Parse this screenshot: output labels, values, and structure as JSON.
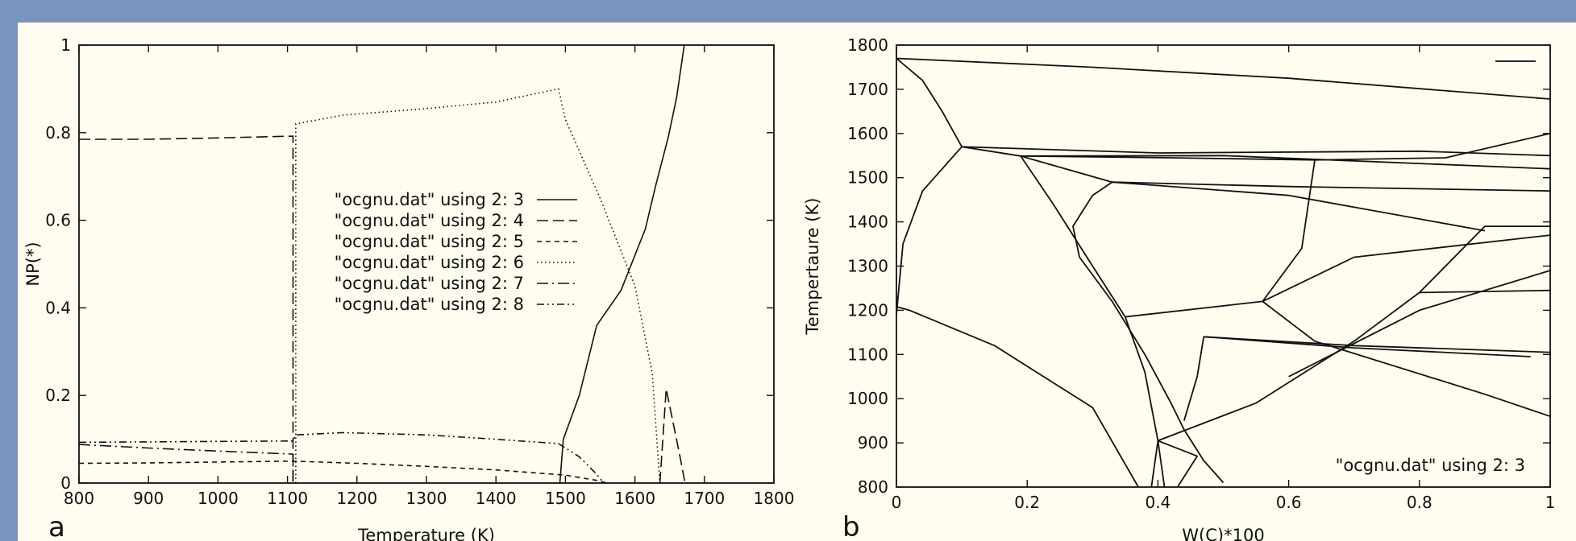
{
  "colors": {
    "frame": "#7a95bd",
    "panel": "#fffdf0",
    "ink": "#111111"
  },
  "chart_data": [
    {
      "panel_label": "a",
      "type": "line",
      "xlabel": "Temperature (K)",
      "ylabel": "NP(*)",
      "xlim": [
        800,
        1800
      ],
      "ylim": [
        0,
        1
      ],
      "xticks": [
        "800",
        "900",
        "1000",
        "1100",
        "1200",
        "1300",
        "1400",
        "1500",
        "1600",
        "1700",
        "1800"
      ],
      "yticks": [
        "0",
        "0.2",
        "0.4",
        "0.6",
        "0.8",
        "1"
      ],
      "grid": false,
      "legend_position": "center",
      "series": [
        {
          "name": "\"ocgnu.dat\" using 2:  3",
          "dash": "solid",
          "points": [
            [
              1492,
              0
            ],
            [
              1497,
              0.1
            ],
            [
              1520,
              0.2
            ],
            [
              1545,
              0.36
            ],
            [
              1580,
              0.44
            ],
            [
              1615,
              0.58
            ],
            [
              1630,
              0.68
            ],
            [
              1648,
              0.79
            ],
            [
              1660,
              0.88
            ],
            [
              1671,
              1.0
            ]
          ]
        },
        {
          "name": "\"ocgnu.dat\" using 2:  4",
          "dash": "long-dash",
          "points": [
            [
              800,
              0.785
            ],
            [
              900,
              0.785
            ],
            [
              1000,
              0.788
            ],
            [
              1100,
              0.792
            ],
            [
              1108,
              0.792
            ],
            [
              1108,
              0
            ]
          ]
        },
        {
          "name": "\"ocgnu.dat\" using 2:  5",
          "dash": "short-dash",
          "points": [
            [
              800,
              0.045
            ],
            [
              900,
              0.046
            ],
            [
              1000,
              0.048
            ],
            [
              1108,
              0.05
            ],
            [
              1200,
              0.045
            ],
            [
              1300,
              0.038
            ],
            [
              1400,
              0.03
            ],
            [
              1500,
              0.018
            ],
            [
              1545,
              0.006
            ],
            [
              1560,
              0
            ]
          ]
        },
        {
          "name": "\"ocgnu.dat\" using 2:  6",
          "dash": "dotted",
          "points": [
            [
              1112,
              0
            ],
            [
              1112,
              0.82
            ],
            [
              1180,
              0.84
            ],
            [
              1300,
              0.855
            ],
            [
              1400,
              0.87
            ],
            [
              1490,
              0.9
            ],
            [
              1500,
              0.83
            ],
            [
              1550,
              0.65
            ],
            [
              1600,
              0.45
            ],
            [
              1625,
              0.25
            ],
            [
              1635,
              0.02
            ],
            [
              1636,
              0
            ]
          ]
        },
        {
          "name": "\"ocgnu.dat\" using 2:  7",
          "dash": "dash-dot",
          "points": [
            [
              800,
              0.088
            ],
            [
              900,
              0.08
            ],
            [
              1000,
              0.073
            ],
            [
              1108,
              0.066
            ],
            [
              1108,
              0
            ]
          ]
        },
        {
          "name": "\"ocgnu.dat\" using 2:  8",
          "dash": "dash-dot-dot",
          "points": [
            [
              800,
              0.093
            ],
            [
              900,
              0.094
            ],
            [
              1000,
              0.095
            ],
            [
              1108,
              0.096
            ],
            [
              1112,
              0.11
            ],
            [
              1180,
              0.115
            ],
            [
              1300,
              0.11
            ],
            [
              1400,
              0.1
            ],
            [
              1490,
              0.09
            ],
            [
              1520,
              0.06
            ],
            [
              1545,
              0.02
            ],
            [
              1555,
              0
            ]
          ]
        },
        {
          "name": "",
          "dash": "long-dash",
          "points": [
            [
              1636,
              0
            ],
            [
              1645,
              0.215
            ],
            [
              1665,
              0.06
            ],
            [
              1672,
              0
            ]
          ]
        }
      ]
    },
    {
      "panel_label": "b",
      "type": "line",
      "xlabel": "W(C)*100",
      "ylabel": "Tempertaure (K)",
      "xlim": [
        0,
        1
      ],
      "ylim": [
        800,
        1800
      ],
      "xticks": [
        "0",
        "0.2",
        "0.4",
        "0.6",
        "0.8",
        "1"
      ],
      "yticks": [
        "800",
        "900",
        "1000",
        "1100",
        "1200",
        "1300",
        "1400",
        "1500",
        "1600",
        "1700",
        "1800"
      ],
      "grid": false,
      "legend_position": "top-right",
      "legend_label": "\"ocgnu.dat\" using 2:  3",
      "curves": [
        [
          [
            0,
            1770
          ],
          [
            0.3,
            1750
          ],
          [
            0.6,
            1725
          ],
          [
            1.0,
            1678
          ]
        ],
        [
          [
            0,
            1770
          ],
          [
            0.04,
            1720
          ],
          [
            0.07,
            1650
          ],
          [
            0.1,
            1570
          ]
        ],
        [
          [
            0,
            1190
          ],
          [
            0.01,
            1350
          ],
          [
            0.04,
            1470
          ],
          [
            0.1,
            1570
          ]
        ],
        [
          [
            0,
            1208
          ],
          [
            0.02,
            1200
          ],
          [
            0.15,
            1120
          ],
          [
            0.3,
            980
          ],
          [
            0.37,
            800
          ]
        ],
        [
          [
            0.1,
            1570
          ],
          [
            0.4,
            1556
          ],
          [
            0.8,
            1560
          ],
          [
            1.0,
            1550
          ]
        ],
        [
          [
            0.1,
            1570
          ],
          [
            0.19,
            1549
          ]
        ],
        [
          [
            0.19,
            1549
          ],
          [
            0.42,
            1545
          ],
          [
            0.64,
            1540
          ],
          [
            0.84,
            1545
          ],
          [
            1.0,
            1600
          ]
        ],
        [
          [
            0.19,
            1549
          ],
          [
            0.5,
            1550
          ],
          [
            1.0,
            1520
          ]
        ],
        [
          [
            0.19,
            1549
          ],
          [
            0.24,
            1440
          ],
          [
            0.3,
            1300
          ],
          [
            0.35,
            1185
          ]
        ],
        [
          [
            0.19,
            1549
          ],
          [
            0.33,
            1490
          ]
        ],
        [
          [
            0.33,
            1490
          ],
          [
            0.3,
            1460
          ],
          [
            0.27,
            1390
          ],
          [
            0.28,
            1320
          ],
          [
            0.33,
            1220
          ],
          [
            0.38,
            1100
          ],
          [
            0.42,
            990
          ],
          [
            0.44,
            930
          ],
          [
            0.47,
            860
          ],
          [
            0.5,
            810
          ]
        ],
        [
          [
            0.33,
            1490
          ],
          [
            0.6,
            1480
          ],
          [
            1.0,
            1470
          ]
        ],
        [
          [
            0.33,
            1490
          ],
          [
            0.6,
            1460
          ],
          [
            0.9,
            1380
          ]
        ],
        [
          [
            0.35,
            1185
          ],
          [
            0.56,
            1220
          ],
          [
            0.62,
            1340
          ],
          [
            0.64,
            1540
          ]
        ],
        [
          [
            0.35,
            1185
          ],
          [
            0.38,
            1060
          ],
          [
            0.4,
            905
          ],
          [
            0.41,
            800
          ]
        ],
        [
          [
            0.4,
            905
          ],
          [
            0.39,
            800
          ]
        ],
        [
          [
            0.4,
            905
          ],
          [
            0.46,
            870
          ],
          [
            0.43,
            800
          ]
        ],
        [
          [
            0.4,
            905
          ],
          [
            0.55,
            990
          ],
          [
            0.7,
            1130
          ],
          [
            0.8,
            1240
          ]
        ],
        [
          [
            0.56,
            1220
          ],
          [
            0.7,
            1320
          ],
          [
            1.0,
            1370
          ]
        ],
        [
          [
            0.56,
            1220
          ],
          [
            0.64,
            1130
          ],
          [
            0.9,
            1010
          ],
          [
            1.0,
            960
          ]
        ],
        [
          [
            0.47,
            1140
          ],
          [
            0.7,
            1120
          ],
          [
            1.0,
            1105
          ]
        ],
        [
          [
            0.47,
            1140
          ],
          [
            0.7,
            1115
          ],
          [
            0.97,
            1095
          ]
        ],
        [
          [
            0.47,
            1140
          ],
          [
            0.46,
            1050
          ],
          [
            0.44,
            950
          ]
        ],
        [
          [
            0.8,
            1240
          ],
          [
            1.0,
            1245
          ]
        ],
        [
          [
            0.8,
            1240
          ],
          [
            0.9,
            1390
          ],
          [
            1.0,
            1390
          ]
        ],
        [
          [
            0.6,
            1050
          ],
          [
            0.8,
            1200
          ],
          [
            1.0,
            1290
          ]
        ]
      ]
    }
  ]
}
